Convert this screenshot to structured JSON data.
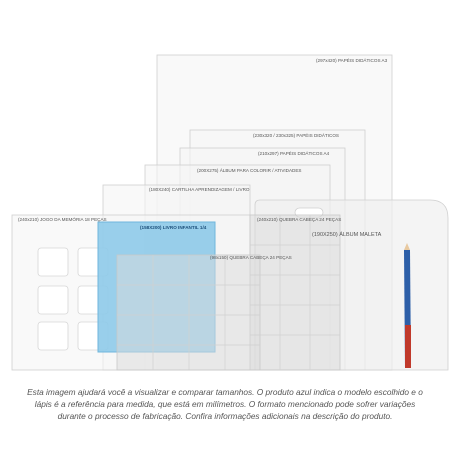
{
  "labels": [
    "(297x420) PAPÉIS DIDÁTICOS A3",
    "(230x320 / 230x325) PAPÉIS DIDÁTICOS",
    "(210x297) PAPÉIS DIDÁTICOS A4",
    "(200X275) ÁLBUM PARA COLORIR / ATIVIDADES",
    "(180X240) CARTILHA APRENDIZAGEM / LIVRO",
    "(240x210) JOGO DA MEMÓRIA 18 PEÇAS",
    "(240x210) QUEBRA CABEÇA 24 PEÇAS",
    "(190X250) ÁLBUM MALETA",
    "(98x150) QUEBRA CABEÇA 24 PEÇAS",
    "(158X200) LIVRO INFANTIL 1/4"
  ],
  "caption": "Esta imagem ajudará você a visualizar e comparar tamanhos. O produto azul indica o modelo escolhido e o lápis é a referência para medida, que está em milímetros. O formato mencionado pode sofrer variações durante o processo de fabricação. Confira informações adicionais na descrição do produto."
}
